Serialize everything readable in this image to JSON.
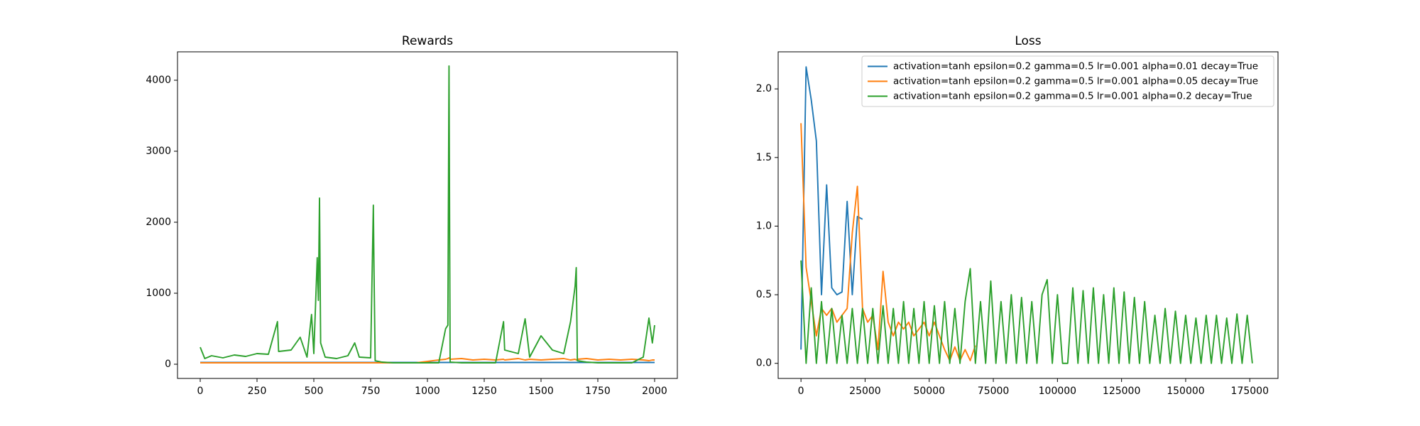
{
  "chart_data": [
    {
      "type": "line",
      "title": "Rewards",
      "x": [
        0,
        20,
        50,
        100,
        150,
        200,
        250,
        300,
        340,
        345,
        400,
        440,
        470,
        490,
        500,
        515,
        520,
        525,
        530,
        550,
        600,
        650,
        680,
        700,
        750,
        762,
        765,
        770,
        800,
        850,
        900,
        950,
        1000,
        1050,
        1080,
        1090,
        1095,
        1100,
        1150,
        1200,
        1250,
        1300,
        1335,
        1340,
        1400,
        1430,
        1450,
        1500,
        1550,
        1600,
        1630,
        1650,
        1655,
        1660,
        1700,
        1750,
        1800,
        1850,
        1900,
        1950,
        1975,
        1990,
        2000
      ],
      "series": [
        {
          "name": "activation=tanh epsilon=0.2 gamma=0.5 lr=0.001 alpha=0.01 decay=True",
          "color": "#1f77b4",
          "values": [
            25,
            25,
            25,
            25,
            25,
            25,
            25,
            25,
            25,
            25,
            25,
            25,
            25,
            25,
            25,
            25,
            25,
            25,
            25,
            25,
            25,
            25,
            25,
            25,
            25,
            25,
            25,
            25,
            25,
            25,
            25,
            25,
            25,
            25,
            25,
            25,
            25,
            25,
            25,
            25,
            25,
            25,
            25,
            25,
            25,
            25,
            25,
            25,
            25,
            25,
            25,
            25,
            25,
            25,
            25,
            25,
            25,
            25,
            25,
            25,
            25,
            25,
            25
          ]
        },
        {
          "name": "activation=tanh epsilon=0.2 gamma=0.5 lr=0.001 alpha=0.05 decay=True",
          "color": "#ff7f0e",
          "values": [
            20,
            20,
            20,
            20,
            20,
            20,
            20,
            20,
            20,
            20,
            20,
            20,
            20,
            20,
            20,
            20,
            20,
            20,
            20,
            20,
            20,
            20,
            20,
            20,
            20,
            20,
            20,
            20,
            20,
            20,
            20,
            20,
            40,
            60,
            70,
            80,
            90,
            70,
            80,
            60,
            70,
            60,
            70,
            60,
            80,
            60,
            70,
            60,
            70,
            80,
            60,
            70,
            60,
            70,
            80,
            60,
            70,
            60,
            70,
            60,
            50,
            60,
            60
          ]
        },
        {
          "name": "activation=tanh epsilon=0.2 gamma=0.5 lr=0.001 alpha=0.2 decay=True",
          "color": "#2ca02c",
          "values": [
            240,
            80,
            120,
            90,
            130,
            110,
            150,
            140,
            600,
            180,
            200,
            380,
            100,
            700,
            150,
            1500,
            900,
            2340,
            300,
            100,
            80,
            120,
            300,
            100,
            90,
            2240,
            1300,
            50,
            30,
            20,
            20,
            20,
            20,
            20,
            500,
            550,
            4200,
            30,
            20,
            20,
            20,
            20,
            600,
            200,
            150,
            640,
            100,
            400,
            200,
            150,
            600,
            1100,
            1360,
            50,
            30,
            20,
            20,
            20,
            20,
            100,
            650,
            300,
            550
          ]
        }
      ],
      "xlim": [
        -100,
        2100
      ],
      "xticks": [
        0,
        250,
        500,
        750,
        1000,
        1250,
        1500,
        1750,
        2000
      ],
      "ylim": [
        -200,
        4400
      ],
      "yticks": [
        0,
        1000,
        2000,
        3000,
        4000
      ],
      "legend": null
    },
    {
      "type": "line",
      "title": "Loss",
      "x": [
        0,
        2000,
        4000,
        6000,
        8000,
        10000,
        12000,
        14000,
        16000,
        18000,
        20000,
        22000,
        24000,
        26000,
        28000,
        30000,
        32000,
        34000,
        36000,
        38000,
        40000,
        42000,
        44000,
        46000,
        48000,
        50000,
        52000,
        54000,
        56000,
        58000,
        60000,
        62000,
        64000,
        66000,
        68000,
        70000,
        72000,
        74000,
        76000,
        78000,
        80000,
        82000,
        84000,
        86000,
        88000,
        90000,
        92000,
        94000,
        96000,
        98000,
        100000,
        102000,
        104000,
        106000,
        108000,
        110000,
        112000,
        114000,
        116000,
        118000,
        120000,
        122000,
        124000,
        126000,
        128000,
        130000,
        132000,
        134000,
        136000,
        138000,
        140000,
        142000,
        144000,
        146000,
        148000,
        150000,
        152000,
        154000,
        156000,
        158000,
        160000,
        162000,
        164000,
        166000,
        168000,
        170000,
        172000,
        174000,
        176000
      ],
      "series": [
        {
          "name": "activation=tanh epsilon=0.2 gamma=0.5 lr=0.001 alpha=0.01 decay=True",
          "color": "#1f77b4",
          "values": [
            0.1,
            2.16,
            1.92,
            1.62,
            0.5,
            1.3,
            0.55,
            0.5,
            0.52,
            1.18,
            0.5,
            1.07,
            1.05,
            null,
            null,
            null,
            null,
            null,
            null,
            null,
            null,
            null,
            null,
            null,
            null,
            null,
            null,
            null,
            null,
            null,
            null,
            null,
            null,
            null,
            null,
            null,
            null,
            null,
            null,
            null,
            null,
            null,
            null,
            null,
            null,
            null,
            null,
            null,
            null,
            null,
            null,
            null,
            null,
            null,
            null,
            null,
            null,
            null,
            null,
            null,
            null,
            null,
            null,
            null,
            null,
            null,
            null,
            null,
            null,
            null,
            null,
            null,
            null,
            null,
            null,
            null,
            null,
            null,
            null,
            null,
            null,
            null,
            null,
            null,
            null,
            null,
            null,
            null,
            null
          ]
        },
        {
          "name": "activation=tanh epsilon=0.2 gamma=0.5 lr=0.001 alpha=0.05 decay=True",
          "color": "#ff7f0e",
          "values": [
            1.75,
            0.7,
            0.45,
            0.2,
            0.4,
            0.35,
            0.4,
            0.3,
            0.35,
            0.4,
            0.95,
            1.29,
            0.4,
            0.3,
            0.35,
            0.1,
            0.67,
            0.3,
            0.2,
            0.3,
            0.25,
            0.3,
            0.2,
            0.25,
            0.3,
            0.2,
            0.3,
            0.2,
            0.1,
            0.02,
            0.12,
            0.02,
            0.1,
            0.02,
            0.13,
            null,
            null,
            null,
            null,
            null,
            null,
            null,
            null,
            null,
            null,
            null,
            null,
            null,
            null,
            null,
            null,
            null,
            null,
            null,
            null,
            null,
            null,
            null,
            null,
            null,
            null,
            null,
            null,
            null,
            null,
            null,
            null,
            null,
            null,
            null,
            null,
            null,
            null,
            null,
            null,
            null,
            null,
            null,
            null,
            null,
            null,
            null,
            null,
            null,
            null,
            null,
            null,
            null,
            null
          ]
        },
        {
          "name": "activation=tanh epsilon=0.2 gamma=0.5 lr=0.001 alpha=0.2 decay=True",
          "color": "#2ca02c",
          "values": [
            0.75,
            0.0,
            0.55,
            0.0,
            0.45,
            0.0,
            0.4,
            0.0,
            0.35,
            0.0,
            0.4,
            0.0,
            0.4,
            0.0,
            0.4,
            0.0,
            0.42,
            0.0,
            0.4,
            0.0,
            0.45,
            0.0,
            0.4,
            0.0,
            0.45,
            0.0,
            0.42,
            0.0,
            0.45,
            0.0,
            0.4,
            0.0,
            0.45,
            0.69,
            0.0,
            0.45,
            0.0,
            0.6,
            0.0,
            0.45,
            0.0,
            0.5,
            0.0,
            0.48,
            0.0,
            0.45,
            0.0,
            0.5,
            0.61,
            0.0,
            0.5,
            0.0,
            0.0,
            0.55,
            0.0,
            0.53,
            0.0,
            0.55,
            0.0,
            0.5,
            0.0,
            0.55,
            0.0,
            0.52,
            0.0,
            0.48,
            0.0,
            0.45,
            0.0,
            0.35,
            0.0,
            0.4,
            0.0,
            0.38,
            0.0,
            0.35,
            0.0,
            0.33,
            0.0,
            0.35,
            0.0,
            0.35,
            0.0,
            0.33,
            0.0,
            0.36,
            0.0,
            0.35,
            0.0
          ]
        }
      ],
      "xlim": [
        -8900,
        186000
      ],
      "xticks": [
        0,
        25000,
        50000,
        75000,
        100000,
        125000,
        150000,
        175000
      ],
      "ylim": [
        -0.11,
        2.27
      ],
      "yticks": [
        {
          "value": 0,
          "label": "0.0"
        },
        0.5,
        {
          "value": 1,
          "label": "1.0"
        },
        1.5,
        {
          "value": 2,
          "label": "2.0"
        }
      ],
      "legend": "upper right"
    }
  ]
}
